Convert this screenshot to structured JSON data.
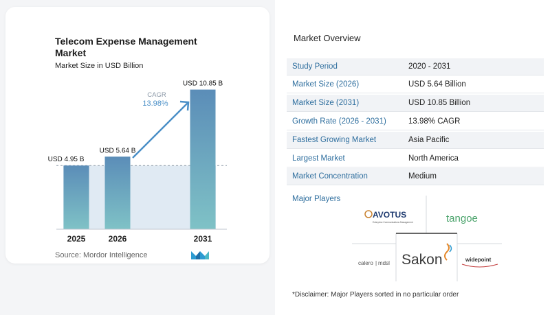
{
  "chart_data": {
    "type": "bar",
    "title": "Telecom Expense Management Market",
    "subtitle": "Market Size in USD Billion",
    "categories": [
      "2025",
      "2026",
      "2031"
    ],
    "values": [
      4.95,
      5.64,
      10.85
    ],
    "data_labels": [
      "USD 4.95 B",
      "USD 5.64 B",
      "USD 10.85 B"
    ],
    "ylim": [
      0,
      12
    ],
    "grid": false,
    "cagr_label": "CAGR",
    "cagr_value": "13.98%",
    "colors": {
      "bar_top": "#5b8db8",
      "bar_bottom": "#7fc2c6",
      "band": "#dbe6f1",
      "arrow": "#4a8fc7"
    }
  },
  "source": "Source:  Mordor Intelligence",
  "overview": {
    "title": "Market Overview",
    "rows": [
      {
        "label": "Study Period",
        "value": "2020 - 2031"
      },
      {
        "label": "Market Size (2026)",
        "value": "USD 5.64 Billion"
      },
      {
        "label": "Market Size (2031)",
        "value": "USD 10.85 Billion"
      },
      {
        "label": "Growth Rate (2026 - 2031)",
        "value": "13.98% CAGR"
      },
      {
        "label": "Fastest Growing Market",
        "value": "Asia Pacific"
      },
      {
        "label": "Largest Market",
        "value": "North America"
      },
      {
        "label": "Market Concentration",
        "value": "Medium"
      }
    ]
  },
  "players": {
    "title": "Major Players",
    "logos": {
      "avotus": "AVOTUS",
      "avotus_tagline": "Enterprise Communications Management",
      "tangoe": "tangoe",
      "calero": "calero",
      "mdsl": "mdsl",
      "sakon": "Sakon",
      "widepoint": "widepoint"
    }
  },
  "disclaimer": "*Disclaimer: Major Players sorted in no particular order"
}
